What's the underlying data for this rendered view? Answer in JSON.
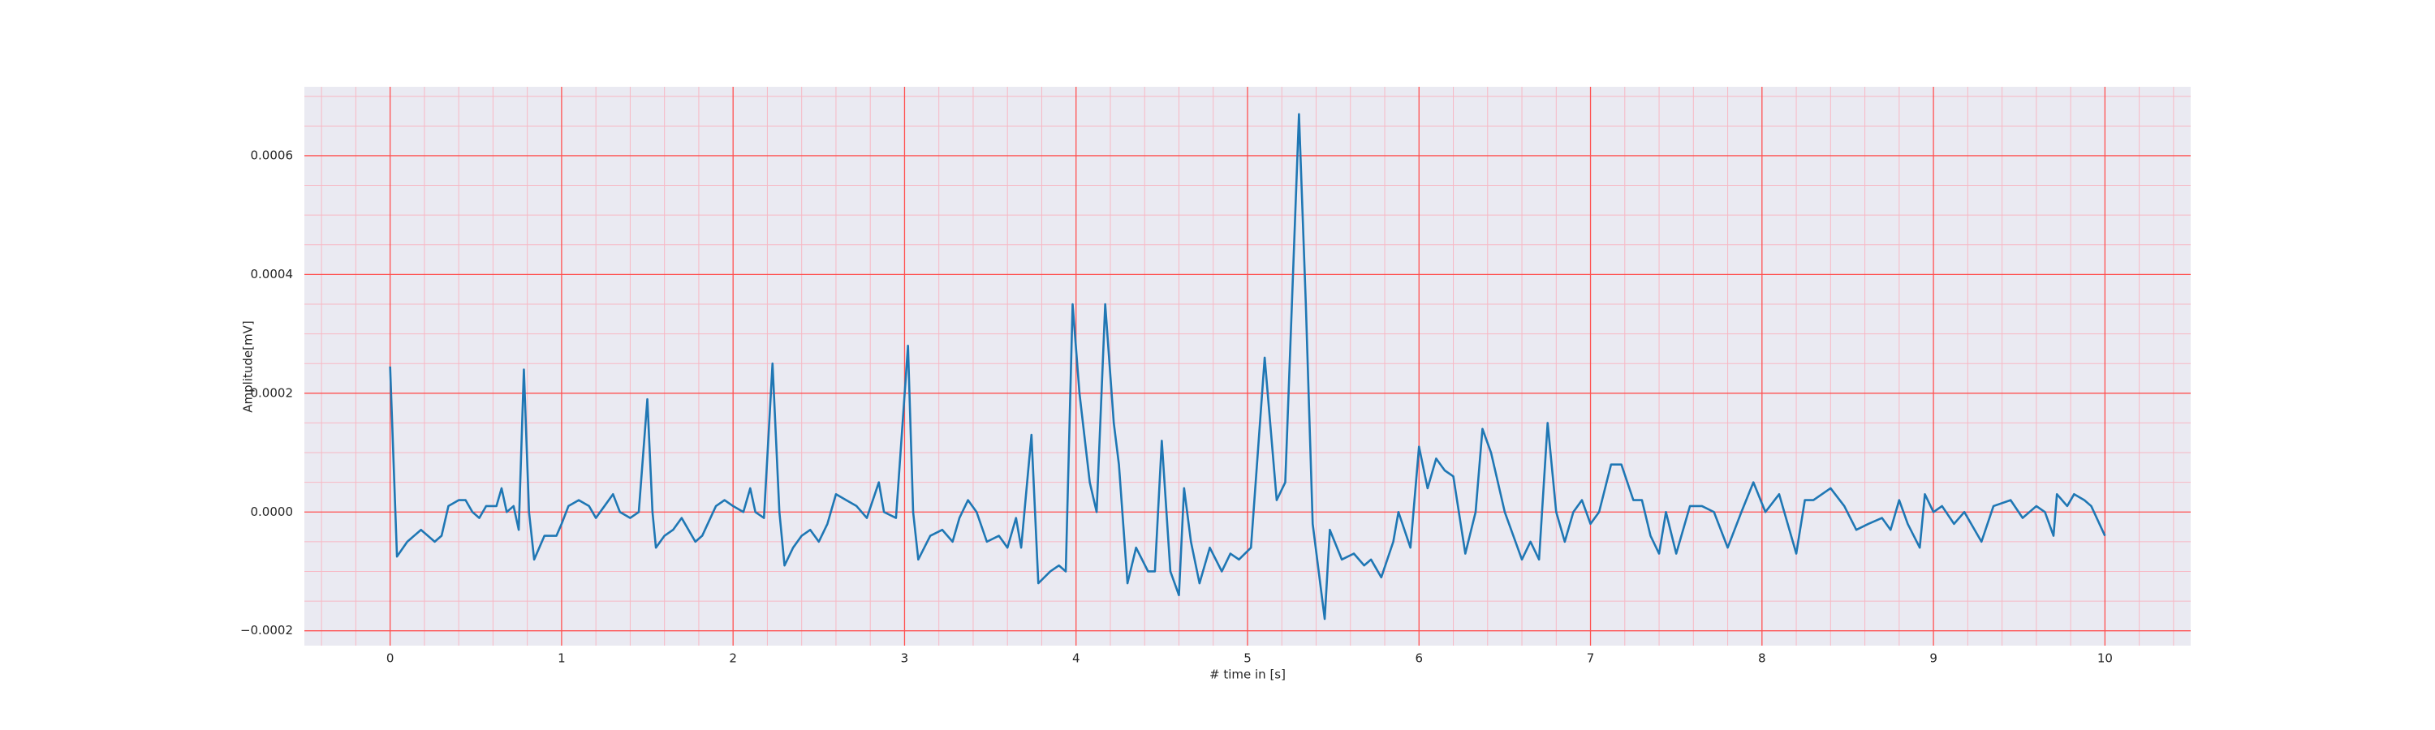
{
  "chart_data": {
    "type": "line",
    "xlabel": "# time in [s]",
    "ylabel": "Amplitude[mV]",
    "color": "#1f77b4",
    "background": "#eaeaf2",
    "grid": true,
    "grid_color": "#ff5050",
    "minor_grid_color": "#f7b8c4",
    "xlim": [
      -0.5,
      10.5
    ],
    "ylim": [
      -0.000225,
      0.000716
    ],
    "xticks": [
      0,
      1,
      2,
      3,
      4,
      5,
      6,
      7,
      8,
      9,
      10
    ],
    "yticks": [
      {
        "value": -0.0002,
        "label": "−0.0002"
      },
      {
        "value": 0,
        "label": "0.0000"
      },
      {
        "value": 0.0002,
        "label": "0.0002"
      },
      {
        "value": 0.0004,
        "label": "0.0004"
      },
      {
        "value": 0.0006,
        "label": "0.0006"
      }
    ],
    "xminorticks": [
      -0.4,
      -0.2,
      0.2,
      0.4,
      0.6,
      0.8,
      1.2,
      1.4,
      1.6,
      1.8,
      2.2,
      2.4,
      2.6,
      2.8,
      3.2,
      3.4,
      3.6,
      3.8,
      4.2,
      4.4,
      4.6,
      4.8,
      5.2,
      5.4,
      5.6,
      5.8,
      6.2,
      6.4,
      6.6,
      6.8,
      7.2,
      7.4,
      7.6,
      7.8,
      8.2,
      8.4,
      8.6,
      8.8,
      9.2,
      9.4,
      9.6,
      9.8,
      10.2,
      10.4
    ],
    "yminorticks": [
      -0.00015,
      -0.0001,
      -5e-05,
      5e-05,
      0.0001,
      0.00015,
      0.00025,
      0.0003,
      0.00035,
      0.00045,
      0.0005,
      0.00055,
      0.00065,
      0.0007
    ],
    "x": [
      0,
      0.04,
      0.1,
      0.18,
      0.22,
      0.26,
      0.3,
      0.34,
      0.4,
      0.44,
      0.48,
      0.52,
      0.56,
      0.62,
      0.65,
      0.68,
      0.72,
      0.75,
      0.78,
      0.81,
      0.84,
      0.87,
      0.9,
      0.97,
      1.0,
      1.04,
      1.1,
      1.16,
      1.2,
      1.25,
      1.3,
      1.34,
      1.4,
      1.45,
      1.5,
      1.53,
      1.55,
      1.6,
      1.65,
      1.7,
      1.78,
      1.82,
      1.9,
      1.95,
      2.0,
      2.06,
      2.1,
      2.13,
      2.18,
      2.23,
      2.27,
      2.3,
      2.35,
      2.4,
      2.45,
      2.5,
      2.55,
      2.6,
      2.66,
      2.72,
      2.78,
      2.85,
      2.88,
      2.95,
      3.02,
      3.05,
      3.08,
      3.15,
      3.22,
      3.28,
      3.32,
      3.37,
      3.42,
      3.48,
      3.55,
      3.6,
      3.65,
      3.68,
      3.74,
      3.78,
      3.85,
      3.9,
      3.94,
      3.98,
      4.02,
      4.08,
      4.12,
      4.17,
      4.22,
      4.25,
      4.3,
      4.35,
      4.42,
      4.46,
      4.5,
      4.55,
      4.6,
      4.63,
      4.67,
      4.72,
      4.78,
      4.85,
      4.9,
      4.95,
      5.02,
      5.1,
      5.17,
      5.22,
      5.3,
      5.34,
      5.38,
      5.45,
      5.48,
      5.55,
      5.62,
      5.68,
      5.72,
      5.78,
      5.85,
      5.88,
      5.95,
      6.0,
      6.05,
      6.1,
      6.15,
      6.2,
      6.27,
      6.33,
      6.37,
      6.42,
      6.5,
      6.6,
      6.65,
      6.7,
      6.75,
      6.8,
      6.85,
      6.9,
      6.95,
      7.0,
      7.05,
      7.12,
      7.18,
      7.25,
      7.3,
      7.35,
      7.4,
      7.44,
      7.5,
      7.58,
      7.65,
      7.72,
      7.8,
      7.88,
      7.95,
      8.02,
      8.1,
      8.2,
      8.25,
      8.3,
      8.4,
      8.48,
      8.55,
      8.62,
      8.7,
      8.75,
      8.8,
      8.85,
      8.92,
      8.95,
      9.0,
      9.05,
      9.12,
      9.18,
      9.28,
      9.35,
      9.45,
      9.52,
      9.6,
      9.65,
      9.7,
      9.72,
      9.78,
      9.82,
      9.88,
      9.92,
      10.0
    ],
    "values": [
      0.000245,
      -7.5e-05,
      -5e-05,
      -3e-05,
      -4e-05,
      -5e-05,
      -4e-05,
      1e-05,
      2e-05,
      2e-05,
      0.0,
      -1e-05,
      1e-05,
      1e-05,
      4e-05,
      0.0,
      1e-05,
      -3e-05,
      0.00024,
      0.0,
      -8e-05,
      -6e-05,
      -4e-05,
      -4e-05,
      -2e-05,
      1e-05,
      2e-05,
      1e-05,
      -1e-05,
      1e-05,
      3e-05,
      0.0,
      -1e-05,
      0.0,
      0.00019,
      0.0,
      -6e-05,
      -4e-05,
      -3e-05,
      -1e-05,
      -5e-05,
      -4e-05,
      1e-05,
      2e-05,
      1e-05,
      0.0,
      4e-05,
      0.0,
      -1e-05,
      0.00025,
      0.0,
      -9e-05,
      -6e-05,
      -4e-05,
      -3e-05,
      -5e-05,
      -2e-05,
      3e-05,
      2e-05,
      1e-05,
      -1e-05,
      5e-05,
      0.0,
      -1e-05,
      0.00028,
      0.0,
      -8e-05,
      -4e-05,
      -3e-05,
      -5e-05,
      -1e-05,
      2e-05,
      0.0,
      -5e-05,
      -4e-05,
      -6e-05,
      -1e-05,
      -6e-05,
      0.00013,
      -0.00012,
      -0.0001,
      -9e-05,
      -0.0001,
      0.00035,
      0.0002,
      5e-05,
      0.0,
      0.00035,
      0.00015,
      8e-05,
      -0.00012,
      -6e-05,
      -0.0001,
      -0.0001,
      0.00012,
      -0.0001,
      -0.00014,
      4e-05,
      -5e-05,
      -0.00012,
      -6e-05,
      -0.0001,
      -7e-05,
      -8e-05,
      -6e-05,
      0.00026,
      2e-05,
      5e-05,
      0.00067,
      0.00035,
      -2e-05,
      -0.00018,
      -3e-05,
      -8e-05,
      -7e-05,
      -9e-05,
      -8e-05,
      -0.00011,
      -5e-05,
      0.0,
      -6e-05,
      0.00011,
      4e-05,
      9e-05,
      7e-05,
      6e-05,
      -7e-05,
      0.0,
      0.00014,
      0.0001,
      0.0,
      -8e-05,
      -5e-05,
      -8e-05,
      0.00015,
      0.0,
      -5e-05,
      0.0,
      2e-05,
      -2e-05,
      0.0,
      8e-05,
      8e-05,
      2e-05,
      2e-05,
      -4e-05,
      -7e-05,
      0.0,
      -7e-05,
      1e-05,
      1e-05,
      0.0,
      -6e-05,
      0.0,
      5e-05,
      0.0,
      3e-05,
      -7e-05,
      2e-05,
      2e-05,
      4e-05,
      1e-05,
      -3e-05,
      -2e-05,
      -1e-05,
      -3e-05,
      2e-05,
      -2e-05,
      -6e-05,
      3e-05,
      0.0,
      1e-05,
      -2e-05,
      0.0,
      -5e-05,
      1e-05,
      2e-05,
      -1e-05,
      1e-05,
      0.0,
      -4e-05,
      3e-05,
      1e-05,
      3e-05,
      2e-05,
      1e-05,
      -4e-05
    ]
  }
}
